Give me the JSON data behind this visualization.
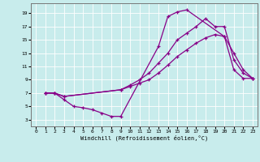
{
  "xlabel": "Windchill (Refroidissement éolien,°C)",
  "bg_color": "#c8ecec",
  "line_color": "#880088",
  "grid_color": "#ffffff",
  "xlim": [
    -0.5,
    23.5
  ],
  "ylim": [
    2,
    20.5
  ],
  "xticks": [
    0,
    1,
    2,
    3,
    4,
    5,
    6,
    7,
    8,
    9,
    10,
    11,
    12,
    13,
    14,
    15,
    16,
    17,
    18,
    19,
    20,
    21,
    22,
    23
  ],
  "yticks": [
    3,
    5,
    7,
    9,
    11,
    13,
    15,
    17,
    19
  ],
  "series1_x": [
    1,
    2,
    3,
    4,
    5,
    6,
    7,
    8,
    9,
    13,
    14,
    15,
    16,
    20,
    21,
    22,
    23
  ],
  "series1_y": [
    7,
    7,
    6,
    5,
    4.8,
    4.5,
    4,
    3.5,
    3.5,
    14,
    18.5,
    19.2,
    19.5,
    15.5,
    10.5,
    9.2,
    9.2
  ],
  "series2_x": [
    1,
    2,
    3,
    9,
    10,
    11,
    12,
    13,
    14,
    15,
    16,
    17,
    18,
    19,
    20,
    21,
    22,
    23
  ],
  "series2_y": [
    7,
    7,
    6.5,
    7.5,
    8,
    8.5,
    9,
    10,
    11.2,
    12.5,
    13.5,
    14.5,
    15.3,
    15.8,
    15.5,
    13,
    10.5,
    9.2
  ],
  "series3_x": [
    1,
    2,
    3,
    9,
    10,
    11,
    12,
    13,
    14,
    15,
    16,
    17,
    18,
    19,
    20,
    21,
    22,
    23
  ],
  "series3_y": [
    7,
    7,
    6.5,
    7.5,
    8.2,
    9,
    10,
    11.5,
    13,
    15,
    16,
    17,
    18.2,
    17,
    17,
    12,
    10,
    9.2
  ]
}
